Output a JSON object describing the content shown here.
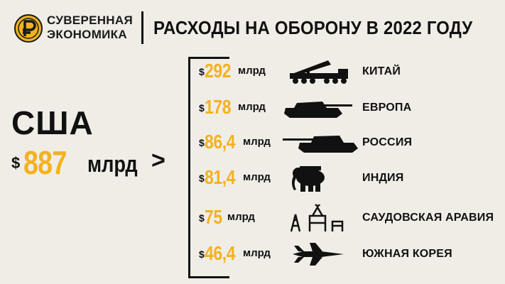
{
  "brand": {
    "line1": "СУВЕРЕННАЯ",
    "line2": "ЭКОНОМИКА",
    "logo_icon": "coin-ruble-icon"
  },
  "title": "РАСХОДЫ НА ОБОРОНУ В 2022 ГОДУ",
  "usa": {
    "name": "США",
    "currency": "$",
    "value": "887",
    "unit": "млрд"
  },
  "comparison_symbol": ">",
  "colors": {
    "accent": "#f3b21f",
    "background": "#efede6",
    "text": "#111111"
  },
  "chart_data": {
    "type": "table",
    "title": "РАСХОДЫ НА ОБОРОНУ В 2022 ГОДУ",
    "unit": "млрд",
    "reference": {
      "country": "США",
      "value": 887
    },
    "categories": [
      "КИТАЙ",
      "ЕВРОПА",
      "РОССИЯ",
      "ИНДИЯ",
      "САУДОВСКАЯ АРАВИЯ",
      "ЮЖНАЯ КОРЕЯ"
    ],
    "values": [
      292,
      178,
      86.4,
      81.4,
      75,
      46.4
    ],
    "rows": [
      {
        "currency": "$",
        "value_label": "292",
        "unit": "млрд",
        "country": "КИТАЙ",
        "icon": "missile-launcher-icon"
      },
      {
        "currency": "$",
        "value_label": "178",
        "unit": "млрд",
        "country": "ЕВРОПА",
        "icon": "tank-icon"
      },
      {
        "currency": "$",
        "value_label": "86,4",
        "unit": "млрд",
        "country": "РОССИЯ",
        "icon": "tank-long-barrel-icon"
      },
      {
        "currency": "$",
        "value_label": "81,4",
        "unit": "млрд",
        "country": "ИНДИЯ",
        "icon": "elephant-icon"
      },
      {
        "currency": "$",
        "value_label": "75",
        "unit": "млрд",
        "country": "САУДОВСКАЯ АРАВИЯ",
        "icon": "oil-rig-icon"
      },
      {
        "currency": "$",
        "value_label": "46,4",
        "unit": "млрд",
        "country": "ЮЖНАЯ КОРЕЯ",
        "icon": "fighter-jet-icon"
      }
    ]
  }
}
